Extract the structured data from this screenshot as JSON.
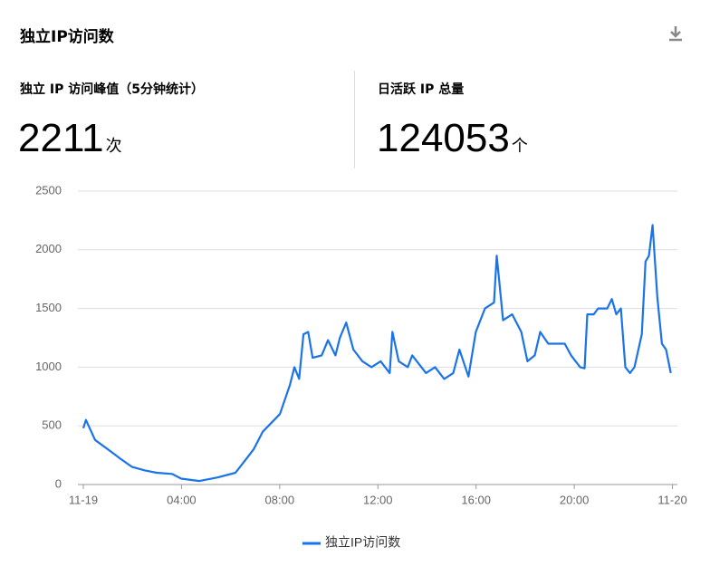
{
  "header": {
    "title": "独立IP访问数"
  },
  "stats": [
    {
      "label": "独立 IP 访问峰值（5分钟统计）",
      "value": 2211,
      "unit": "次"
    },
    {
      "label": "日活跃 IP 总量",
      "value": 124053,
      "unit": "个"
    }
  ],
  "chart_data": {
    "type": "line",
    "x": [
      0,
      0.11,
      0.48,
      1.0,
      1.51,
      1.99,
      2.51,
      2.99,
      3.62,
      3.99,
      4.73,
      5.47,
      6.2,
      6.57,
      6.94,
      7.31,
      8.01,
      8.42,
      8.6,
      8.79,
      8.97,
      9.16,
      9.34,
      9.71,
      9.97,
      10.27,
      10.45,
      10.71,
      11.0,
      11.37,
      11.74,
      12.11,
      12.48,
      12.59,
      12.85,
      13.22,
      13.4,
      13.96,
      14.33,
      14.7,
      15.07,
      15.32,
      15.69,
      15.99,
      16.36,
      16.73,
      16.84,
      17.1,
      17.47,
      17.84,
      18.09,
      18.39,
      18.61,
      18.94,
      19.31,
      19.61,
      19.87,
      20.24,
      20.42,
      20.53,
      20.79,
      20.97,
      21.34,
      21.53,
      21.71,
      21.9,
      22.08,
      22.27,
      22.45,
      22.75,
      22.9,
      23.04,
      23.19,
      23.38,
      23.57,
      23.74,
      23.93
    ],
    "series": [
      {
        "name": "独立IP访问数",
        "color": "#1a73e8",
        "values": [
          480,
          550,
          380,
          300,
          220,
          150,
          120,
          100,
          90,
          50,
          30,
          60,
          100,
          200,
          300,
          450,
          600,
          850,
          1000,
          900,
          1280,
          1300,
          1080,
          1100,
          1230,
          1100,
          1250,
          1380,
          1150,
          1050,
          1000,
          1050,
          950,
          1300,
          1050,
          1000,
          1100,
          950,
          1000,
          900,
          950,
          1150,
          920,
          1300,
          1500,
          1550,
          1950,
          1400,
          1450,
          1300,
          1050,
          1100,
          1300,
          1200,
          1200,
          1200,
          1100,
          1000,
          990,
          1450,
          1450,
          1500,
          1500,
          1580,
          1450,
          1500,
          1000,
          950,
          1000,
          1280,
          1900,
          1950,
          2211,
          1600,
          1200,
          1150,
          950
        ]
      }
    ],
    "xlim": [
      -0.22,
      24.2
    ],
    "xticks": [
      {
        "value": 0,
        "label": "11-19"
      },
      {
        "value": 4,
        "label": "04:00"
      },
      {
        "value": 8,
        "label": "08:00"
      },
      {
        "value": 12,
        "label": "12:00"
      },
      {
        "value": 16,
        "label": "16:00"
      },
      {
        "value": 20,
        "label": "20:00"
      },
      {
        "value": 24,
        "label": "11-20"
      }
    ],
    "ylim": [
      0,
      2500
    ],
    "yticks": [
      0,
      500,
      1000,
      1500,
      2000,
      2500
    ],
    "grid": true
  }
}
